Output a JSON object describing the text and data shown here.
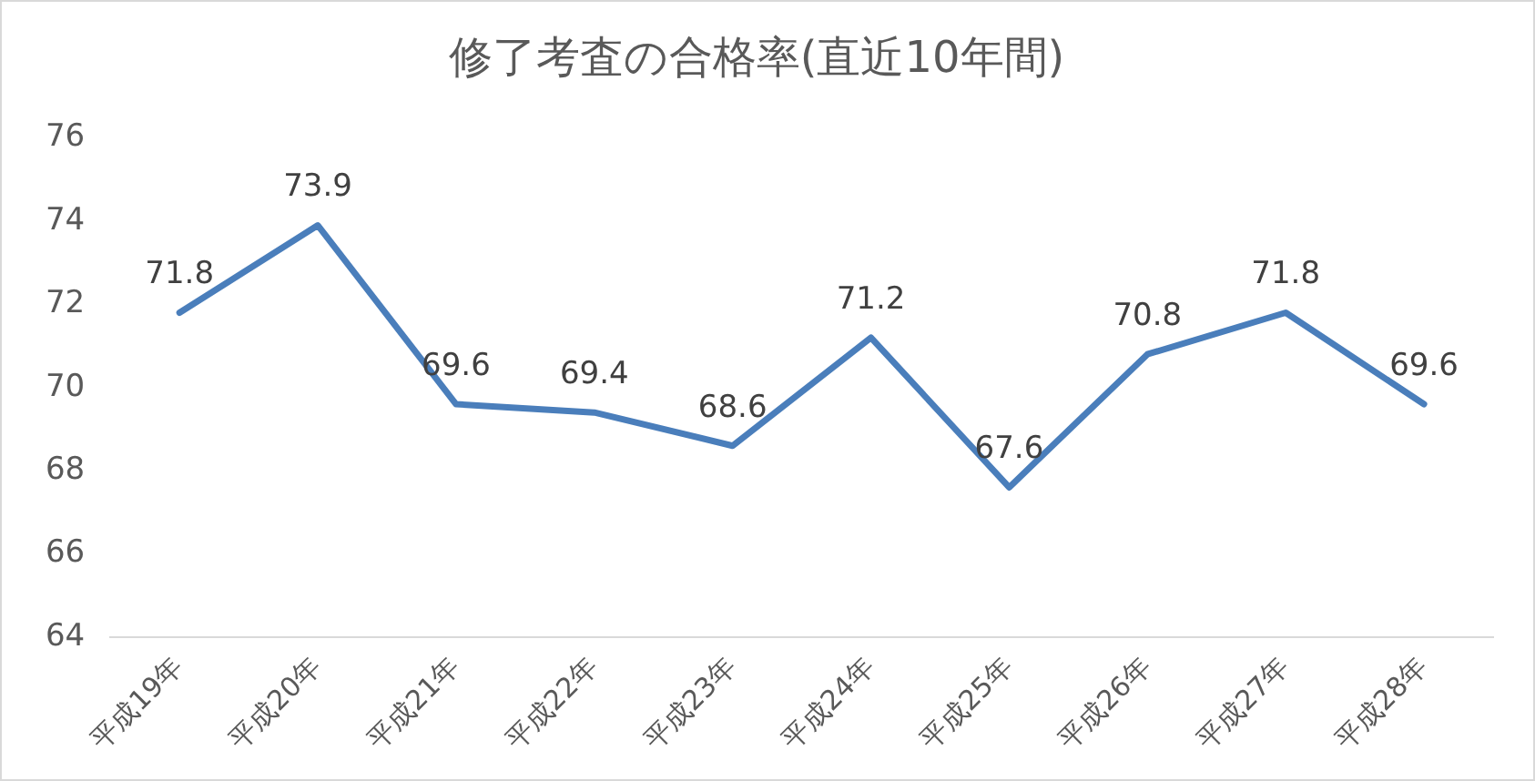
{
  "chart_data": {
    "type": "line",
    "title": "修了考査の合格率(直近10年間)",
    "categories": [
      "平成19年",
      "平成20年",
      "平成21年",
      "平成22年",
      "平成23年",
      "平成24年",
      "平成25年",
      "平成26年",
      "平成27年",
      "平成28年"
    ],
    "series": [
      {
        "color": "#4a7ebb",
        "values": [
          71.8,
          73.9,
          69.6,
          69.4,
          68.6,
          71.2,
          67.6,
          70.8,
          71.8,
          69.6
        ]
      }
    ],
    "ylim": [
      64,
      76
    ],
    "yticks": [
      64,
      66,
      68,
      70,
      72,
      74,
      76
    ],
    "grid": false,
    "legend": false,
    "marker": "none",
    "line_style": "solid",
    "data_labels": true
  }
}
